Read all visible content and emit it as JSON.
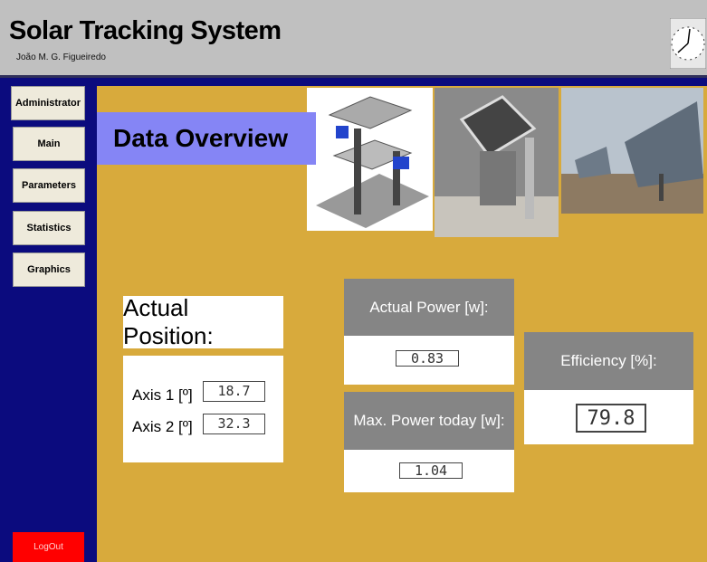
{
  "header": {
    "title": "Solar Tracking System",
    "author": "João M. G. Figueiredo"
  },
  "nav": {
    "buttons": [
      "Administrator",
      "Main",
      "Parameters",
      "Statistics",
      "Graphics"
    ],
    "logout": "LogOut"
  },
  "panel": {
    "title": "Data Overview"
  },
  "position": {
    "title": "Actual Position:",
    "axes": [
      {
        "label": "Axis 1 [º]",
        "value": "18.7"
      },
      {
        "label": "Axis 2 [º]",
        "value": "32.3"
      }
    ]
  },
  "power": {
    "actual": {
      "label": "Actual Power [w]:",
      "value": "0.83"
    },
    "max": {
      "label": "Max. Power today [w]:",
      "value": "1.04"
    }
  },
  "efficiency": {
    "label": "Efficiency [%]:",
    "value": "79.8"
  }
}
